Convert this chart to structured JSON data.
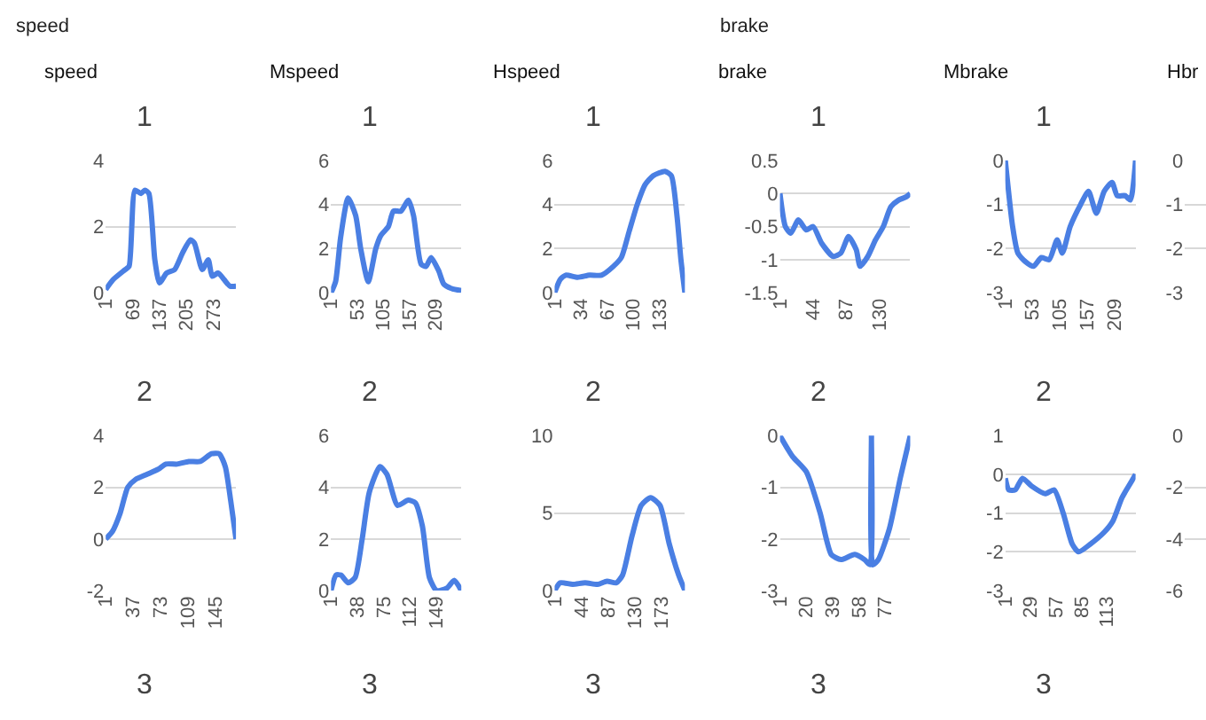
{
  "chart_data": [
    {
      "type": "other",
      "annotations": [
        "speed",
        "brake"
      ]
    },
    {
      "type": "line",
      "title": "1",
      "annotations": [
        "speed"
      ],
      "color": "#4a7fe3",
      "grid": "y",
      "xlim": [
        1,
        330
      ],
      "xticks": [
        1,
        69,
        137,
        205,
        273
      ],
      "ylim": [
        0,
        4
      ],
      "yticks": [
        0,
        2,
        4
      ],
      "x": [
        1,
        20,
        50,
        60,
        75,
        90,
        100,
        110,
        125,
        137,
        155,
        175,
        195,
        215,
        225,
        245,
        260,
        270,
        285,
        300,
        315,
        330
      ],
      "values": [
        0.1,
        0.4,
        0.7,
        0.8,
        3.1,
        3.0,
        3.1,
        3.0,
        1.0,
        0.3,
        0.6,
        0.7,
        1.2,
        1.6,
        1.5,
        0.7,
        1.0,
        0.5,
        0.6,
        0.4,
        0.2,
        0.2
      ]
    },
    {
      "type": "line",
      "title": "1",
      "annotations": [
        "Mspeed"
      ],
      "color": "#4a7fe3",
      "grid": "y",
      "xlim": [
        1,
        260
      ],
      "xticks": [
        1,
        53,
        105,
        157,
        209
      ],
      "ylim": [
        0,
        6
      ],
      "yticks": [
        0,
        2,
        4,
        6
      ],
      "x": [
        1,
        10,
        20,
        35,
        50,
        60,
        75,
        90,
        100,
        115,
        125,
        140,
        155,
        165,
        180,
        190,
        200,
        215,
        225,
        240,
        260
      ],
      "values": [
        0,
        0.5,
        2.5,
        4.3,
        3.5,
        2,
        0.5,
        2,
        2.6,
        3,
        3.7,
        3.7,
        4.2,
        3.5,
        1.3,
        1.2,
        1.6,
        1,
        0.4,
        0.2,
        0.1
      ]
    },
    {
      "type": "line",
      "title": "1",
      "annotations": [
        "Hspeed"
      ],
      "color": "#4a7fe3",
      "grid": "y",
      "xlim": [
        1,
        165
      ],
      "xticks": [
        1,
        34,
        67,
        100,
        133
      ],
      "ylim": [
        0,
        6
      ],
      "yticks": [
        0,
        2,
        4,
        6
      ],
      "x": [
        1,
        8,
        15,
        30,
        45,
        60,
        75,
        85,
        95,
        105,
        115,
        125,
        140,
        148,
        155,
        160,
        165
      ],
      "values": [
        0,
        0.6,
        0.8,
        0.7,
        0.8,
        0.8,
        1.2,
        1.6,
        2.8,
        4,
        4.9,
        5.3,
        5.5,
        5.3,
        3.5,
        1.5,
        0
      ]
    },
    {
      "type": "line",
      "title": "1",
      "annotations": [
        "brake"
      ],
      "color": "#4a7fe3",
      "grid": "y",
      "xlim": [
        1,
        170
      ],
      "xticks": [
        1,
        44,
        87,
        130
      ],
      "ylim": [
        -1.5,
        0.5
      ],
      "yticks": [
        -1.5,
        -1,
        -0.5,
        0,
        0.5
      ],
      "x": [
        1,
        8,
        15,
        25,
        35,
        44,
        55,
        70,
        80,
        90,
        100,
        105,
        115,
        125,
        135,
        145,
        155,
        165,
        170
      ],
      "values": [
        0,
        -0.5,
        -0.6,
        -0.4,
        -0.55,
        -0.5,
        -0.75,
        -0.95,
        -0.9,
        -0.65,
        -0.85,
        -1.1,
        -0.95,
        -0.7,
        -0.5,
        -0.2,
        -0.1,
        -0.05,
        0
      ]
    },
    {
      "type": "line",
      "title": "1",
      "annotations": [
        "Mbrake"
      ],
      "color": "#4a7fe3",
      "grid": "y",
      "xlim": [
        1,
        250
      ],
      "xticks": [
        1,
        53,
        105,
        157,
        209
      ],
      "ylim": [
        -3,
        0
      ],
      "yticks": [
        -3,
        -2,
        -1,
        0
      ],
      "x": [
        1,
        15,
        25,
        40,
        55,
        70,
        85,
        100,
        110,
        125,
        145,
        160,
        175,
        190,
        205,
        215,
        230,
        240,
        250
      ],
      "values": [
        0,
        -1.5,
        -2.1,
        -2.3,
        -2.4,
        -2.2,
        -2.25,
        -1.8,
        -2.1,
        -1.5,
        -1.0,
        -0.7,
        -1.2,
        -0.7,
        -0.5,
        -0.8,
        -0.8,
        -0.9,
        0
      ]
    },
    {
      "type": "line",
      "annotations": [
        "Hbr"
      ],
      "tick_labels": "y",
      "grid": "y",
      "ylim": [
        -3,
        0
      ],
      "yticks": [
        -3,
        -2,
        -1,
        0
      ],
      "categories": [
        null
      ],
      "values": [
        null
      ]
    },
    {
      "type": "line",
      "title": "2",
      "color": "#4a7fe3",
      "grid": "y",
      "xlim": [
        1,
        172
      ],
      "xticks": [
        1,
        37,
        73,
        109,
        145
      ],
      "ylim": [
        -2,
        4
      ],
      "yticks": [
        -2,
        0,
        2,
        4
      ],
      "x": [
        1,
        10,
        20,
        30,
        40,
        55,
        70,
        80,
        95,
        110,
        125,
        140,
        150,
        158,
        165,
        172
      ],
      "values": [
        0,
        0.3,
        1,
        2,
        2.3,
        2.5,
        2.7,
        2.9,
        2.9,
        3.0,
        3.0,
        3.3,
        3.3,
        2.8,
        1.5,
        0
      ]
    },
    {
      "type": "line",
      "title": "2",
      "color": "#4a7fe3",
      "grid": "y",
      "xlim": [
        1,
        185
      ],
      "xticks": [
        1,
        38,
        75,
        112,
        149
      ],
      "ylim": [
        0,
        6
      ],
      "yticks": [
        0,
        2,
        4,
        6
      ],
      "x": [
        1,
        8,
        15,
        25,
        35,
        45,
        55,
        70,
        80,
        95,
        110,
        120,
        130,
        140,
        150,
        165,
        175,
        185
      ],
      "values": [
        0,
        0.6,
        0.6,
        0.3,
        0.5,
        2,
        3.8,
        4.8,
        4.5,
        3.3,
        3.5,
        3.4,
        2.5,
        0.5,
        0,
        0.1,
        0.4,
        0
      ]
    },
    {
      "type": "line",
      "title": "2",
      "color": "#4a7fe3",
      "grid": "y",
      "xlim": [
        1,
        210
      ],
      "xticks": [
        1,
        44,
        87,
        130,
        173
      ],
      "ylim": [
        0,
        10
      ],
      "yticks": [
        0,
        5,
        10
      ],
      "x": [
        1,
        10,
        30,
        50,
        70,
        85,
        100,
        110,
        125,
        140,
        155,
        170,
        185,
        200,
        210
      ],
      "values": [
        0,
        0.5,
        0.4,
        0.5,
        0.4,
        0.6,
        0.5,
        1,
        3.5,
        5.5,
        6,
        5.5,
        3,
        1,
        0
      ]
    },
    {
      "type": "line",
      "title": "2",
      "color": "#4a7fe3",
      "grid": "y",
      "xlim": [
        1,
        95
      ],
      "xticks": [
        1,
        20,
        39,
        58,
        77
      ],
      "ylim": [
        -3,
        0
      ],
      "yticks": [
        -3,
        -2,
        -1,
        0
      ],
      "x": [
        1,
        10,
        20,
        30,
        38,
        45,
        55,
        62,
        66,
        67,
        68,
        72,
        80,
        88,
        95
      ],
      "values": [
        0,
        -0.4,
        -0.7,
        -1.5,
        -2.3,
        -2.4,
        -2.3,
        -2.4,
        -2.5,
        0,
        -2.5,
        -2.4,
        -1.8,
        -0.8,
        0
      ]
    },
    {
      "type": "line",
      "title": "2",
      "color": "#4a7fe3",
      "grid": "y",
      "xlim": [
        1,
        145
      ],
      "xticks": [
        1,
        29,
        57,
        85,
        113
      ],
      "ylim": [
        -3,
        1
      ],
      "yticks": [
        -3,
        -2,
        -1,
        0,
        1
      ],
      "x": [
        1,
        5,
        12,
        20,
        30,
        45,
        55,
        65,
        75,
        82,
        95,
        110,
        120,
        130,
        140,
        145
      ],
      "values": [
        -0.1,
        -0.4,
        -0.4,
        -0.1,
        -0.3,
        -0.5,
        -0.4,
        -1.0,
        -1.8,
        -2.0,
        -1.8,
        -1.5,
        -1.2,
        -0.6,
        -0.2,
        0
      ]
    },
    {
      "type": "line",
      "tick_labels": "y",
      "grid": "y",
      "ylim": [
        -6,
        0
      ],
      "yticks": [
        -6,
        -4,
        -2,
        0
      ],
      "categories": [
        null
      ],
      "values": [
        null
      ]
    },
    {
      "type": "other",
      "title": "3"
    },
    {
      "type": "other",
      "title": "3"
    },
    {
      "type": "other",
      "title": "3"
    },
    {
      "type": "other",
      "title": "3"
    },
    {
      "type": "other",
      "title": "3"
    }
  ]
}
